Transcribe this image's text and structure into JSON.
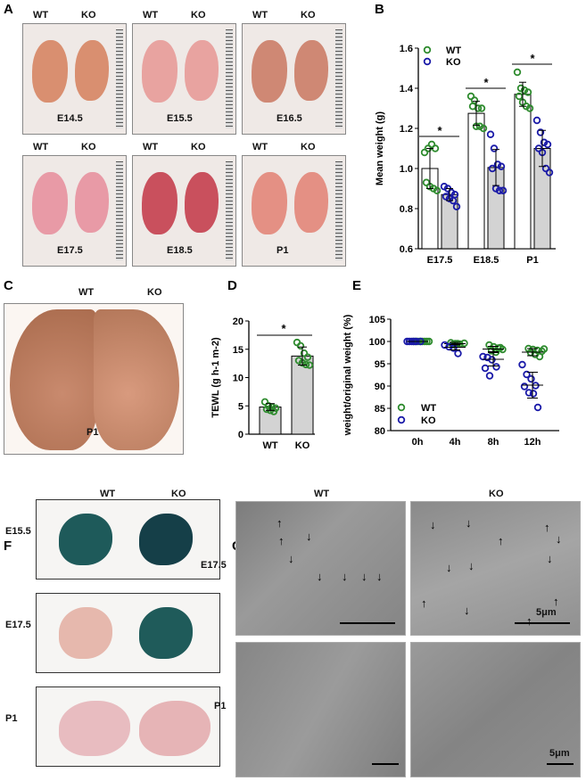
{
  "panels": {
    "A": "A",
    "B": "B",
    "C": "C",
    "D": "D",
    "E": "E",
    "F": "F",
    "G": "G"
  },
  "panel_a": {
    "photos": [
      {
        "stage": "E14.5",
        "wt": "WT",
        "ko": "KO"
      },
      {
        "stage": "E15.5",
        "wt": "WT",
        "ko": "KO"
      },
      {
        "stage": "E16.5",
        "wt": "WT",
        "ko": "KO"
      },
      {
        "stage": "E17.5",
        "wt": "WT",
        "ko": "KO"
      },
      {
        "stage": "E18.5",
        "wt": "WT",
        "ko": "KO"
      },
      {
        "stage": "P1",
        "wt": "WT",
        "ko": "KO"
      }
    ]
  },
  "panel_c": {
    "wt": "WT",
    "ko": "KO",
    "stage": "P1"
  },
  "panel_f": {
    "wt": "WT",
    "ko": "KO",
    "rows": [
      "E15.5",
      "E17.5",
      "P1"
    ]
  },
  "panel_g": {
    "wt": "WT",
    "ko": "KO",
    "rows": [
      "E17.5",
      "P1"
    ],
    "scale_label": "5μm"
  },
  "colors": {
    "wt": "#2e8b2e",
    "ko": "#1a1aa8",
    "ko_bar": "#d3d3d3",
    "wt_bar": "#ffffff"
  },
  "chart_data": [
    {
      "id": "B",
      "type": "bar",
      "ylabel": "Mean weight (g)",
      "ylim": [
        0.6,
        1.6
      ],
      "yticks": [
        "0.6",
        "0.8",
        "1.0",
        "1.2",
        "1.4",
        "1.6"
      ],
      "categories": [
        "E17.5",
        "E18.5",
        "P1"
      ],
      "legend": {
        "position": "top-left",
        "entries": [
          "WT",
          "KO"
        ]
      },
      "significance": [
        "*",
        "*",
        "*"
      ],
      "series": [
        {
          "name": "WT",
          "means": [
            1.0,
            1.275,
            1.37
          ],
          "sd": [
            0.1,
            0.06,
            0.06
          ],
          "points": [
            [
              1.08,
              1.1,
              1.12,
              1.1,
              0.93,
              0.91,
              0.9,
              0.89
            ],
            [
              1.36,
              1.34,
              1.3,
              1.3,
              1.31,
              1.21,
              1.21,
              1.2
            ],
            [
              1.48,
              1.4,
              1.39,
              1.38,
              1.36,
              1.33,
              1.31,
              1.3
            ]
          ]
        },
        {
          "name": "KO",
          "means": [
            0.87,
            1.005,
            1.1
          ],
          "sd": [
            0.03,
            0.09,
            0.09
          ],
          "points": [
            [
              0.91,
              0.9,
              0.88,
              0.87,
              0.86,
              0.85,
              0.84,
              0.81
            ],
            [
              1.17,
              1.1,
              1.02,
              1.01,
              1.0,
              0.9,
              0.89,
              0.89
            ],
            [
              1.24,
              1.18,
              1.13,
              1.12,
              1.1,
              1.08,
              1.0,
              0.98
            ]
          ]
        }
      ]
    },
    {
      "id": "D",
      "type": "bar",
      "ylabel": "TEWL (g h-1 m-2)",
      "ylim": [
        0,
        20
      ],
      "yticks": [
        "0",
        "5",
        "10",
        "15",
        "20"
      ],
      "categories": [
        "WT",
        "KO"
      ],
      "significance": "*",
      "means": [
        4.8,
        13.8
      ],
      "sd": [
        0.6,
        1.6
      ],
      "points": [
        [
          5.7,
          5.0,
          4.8,
          4.6,
          4.4,
          4.2,
          4.0
        ],
        [
          16.2,
          15.6,
          14.3,
          13.6,
          13.0,
          12.6,
          12.3,
          12.2
        ]
      ]
    },
    {
      "id": "E",
      "type": "scatter",
      "ylabel": "weight/original weight (%)",
      "ylim": [
        80,
        105
      ],
      "yticks": [
        "80",
        "85",
        "90",
        "95",
        "100",
        "105"
      ],
      "categories": [
        "0h",
        "4h",
        "8h",
        "12h"
      ],
      "legend": {
        "position": "bottom-left",
        "entries": [
          "WT",
          "KO"
        ]
      },
      "series": [
        {
          "name": "WT",
          "means": [
            100,
            99.5,
            98.3,
            97.6
          ],
          "sd": [
            0,
            0.3,
            0.6,
            0.8
          ],
          "points": [
            [
              100,
              100,
              100,
              100,
              100,
              100,
              100,
              100
            ],
            [
              99.7,
              99.5,
              99.4,
              99.6,
              99.3,
              99.5
            ],
            [
              99.2,
              98.8,
              98.5,
              98.2,
              97.9,
              97.6,
              98.6
            ],
            [
              98.4,
              98.2,
              98.0,
              97.8,
              97.5,
              97.1,
              96.6,
              98.3
            ]
          ]
        },
        {
          "name": "KO",
          "means": [
            100,
            98.7,
            96.0,
            90.2
          ],
          "sd": [
            0,
            0.6,
            1.5,
            2.9
          ],
          "points": [
            [
              100,
              100,
              100,
              100,
              100,
              100
            ],
            [
              99.2,
              98.8,
              98.5,
              97.3
            ],
            [
              96.6,
              96.4,
              95.9,
              94.3,
              94.0,
              92.3
            ],
            [
              94.8,
              92.6,
              91.6,
              90.1,
              89.9,
              88.5,
              88.3,
              85.2
            ]
          ]
        }
      ]
    }
  ]
}
